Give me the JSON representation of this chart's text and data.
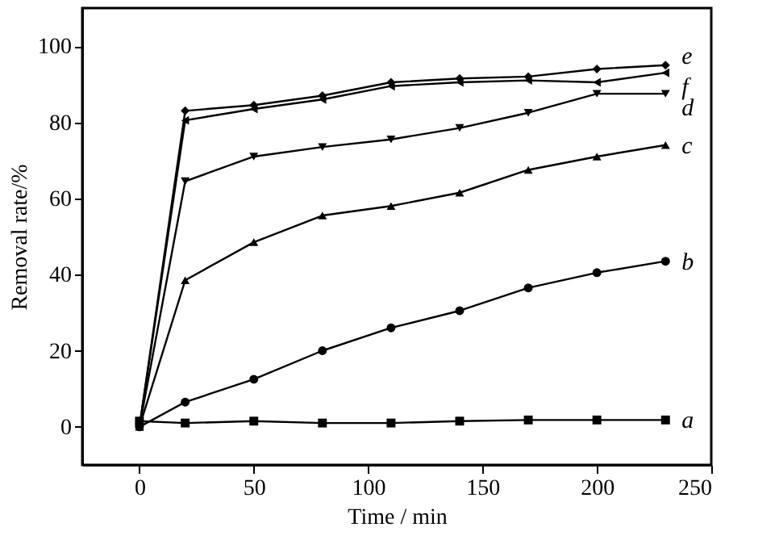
{
  "chart_data": {
    "type": "line",
    "xlabel": "Time / min",
    "ylabel": "Removal rate/%",
    "x": [
      0,
      20,
      50,
      80,
      110,
      140,
      170,
      200,
      230
    ],
    "xlim": [
      -25,
      250
    ],
    "xticks": [
      0,
      50,
      100,
      150,
      200,
      250
    ],
    "ylim": [
      -10,
      110
    ],
    "yticks": [
      0,
      20,
      40,
      60,
      80,
      100
    ],
    "grid": false,
    "line_style": "solid",
    "series": [
      {
        "name": "a",
        "color": "#000000",
        "marker": "square",
        "values": [
          1.5,
          1,
          1.5,
          1,
          1,
          1.5,
          1.8,
          1.8,
          1.8
        ]
      },
      {
        "name": "b",
        "color": "#000000",
        "marker": "circle",
        "values": [
          0,
          6.5,
          12.5,
          20,
          26,
          30.5,
          36.5,
          40.5,
          43.5
        ]
      },
      {
        "name": "c",
        "color": "#000000",
        "marker": "triangle",
        "values": [
          0,
          38.5,
          48.5,
          55.5,
          58,
          61.5,
          67.5,
          71,
          74
        ]
      },
      {
        "name": "d",
        "color": "#000000",
        "marker": "triangle-down",
        "values": [
          0,
          64.5,
          71,
          73.5,
          75.5,
          78.5,
          82.5,
          87.5,
          87.5
        ]
      },
      {
        "name": "e",
        "color": "#000000",
        "marker": "diamond",
        "values": [
          0,
          83,
          84.5,
          87,
          90.5,
          91.5,
          92,
          94,
          95
        ]
      },
      {
        "name": "f",
        "color": "#000000",
        "marker": "triangle-left",
        "values": [
          0,
          80.5,
          83.5,
          86,
          89.5,
          90.5,
          91,
          90.5,
          93
        ]
      }
    ]
  }
}
